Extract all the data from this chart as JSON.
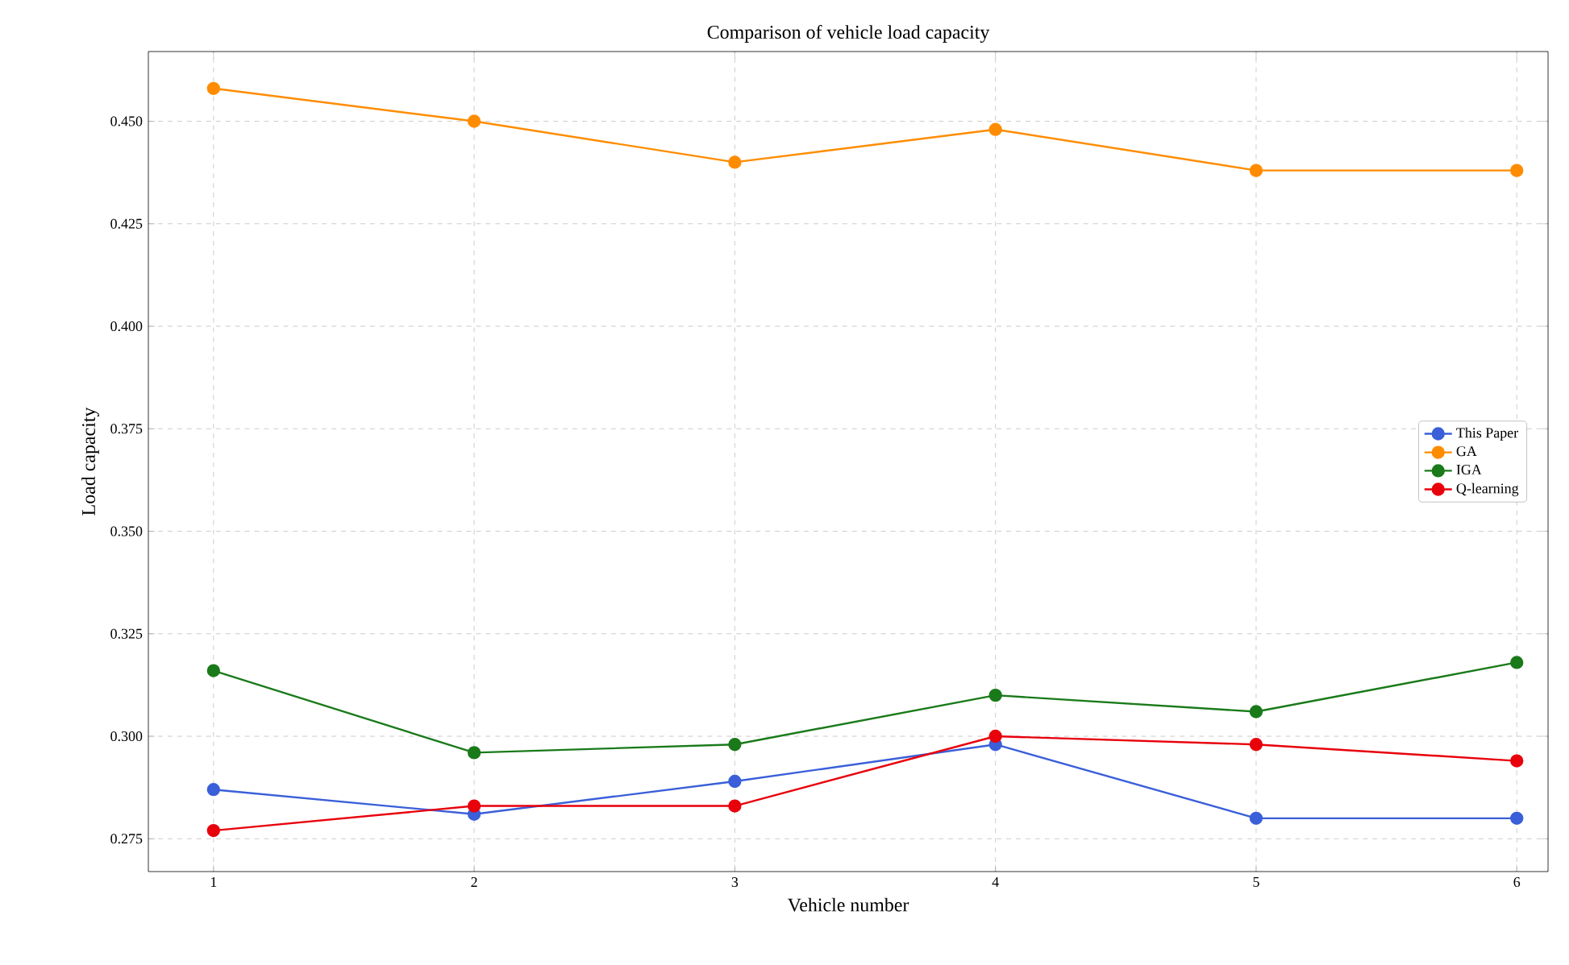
{
  "chart_data": {
    "type": "line",
    "title": "Comparison of vehicle load capacity",
    "xlabel": "Vehicle number",
    "ylabel": "Load capacity",
    "x": [
      1,
      2,
      3,
      4,
      5,
      6
    ],
    "series": [
      {
        "name": "This Paper",
        "color": "#3a5fd9",
        "values": [
          0.287,
          0.281,
          0.289,
          0.298,
          0.28,
          0.28
        ]
      },
      {
        "name": "GA",
        "color": "#ff8c00",
        "values": [
          0.458,
          0.45,
          0.44,
          0.448,
          0.438,
          0.438
        ]
      },
      {
        "name": "IGA",
        "color": "#1a7a1a",
        "values": [
          0.316,
          0.296,
          0.298,
          0.31,
          0.306,
          0.318
        ]
      },
      {
        "name": "Q-learning",
        "color": "#e8000b",
        "values": [
          0.277,
          0.283,
          0.283,
          0.3,
          0.298,
          0.294
        ]
      }
    ],
    "xlim": [
      0.75,
      6.12
    ],
    "ylim": [
      0.267,
      0.467
    ],
    "xticks": [
      1,
      2,
      3,
      4,
      5,
      6
    ],
    "yticks": [
      {
        "value": 0.275,
        "label": "0.275"
      },
      {
        "value": 0.3,
        "label": "0.300"
      },
      {
        "value": 0.325,
        "label": "0.325"
      },
      {
        "value": 0.35,
        "label": "0.350"
      },
      {
        "value": 0.375,
        "label": "0.375"
      },
      {
        "value": 0.4,
        "label": "0.400"
      },
      {
        "value": 0.425,
        "label": "0.425"
      },
      {
        "value": 0.45,
        "label": "0.450"
      }
    ],
    "grid": true,
    "legend": "right",
    "marker": "circle",
    "line_style": "solid"
  }
}
